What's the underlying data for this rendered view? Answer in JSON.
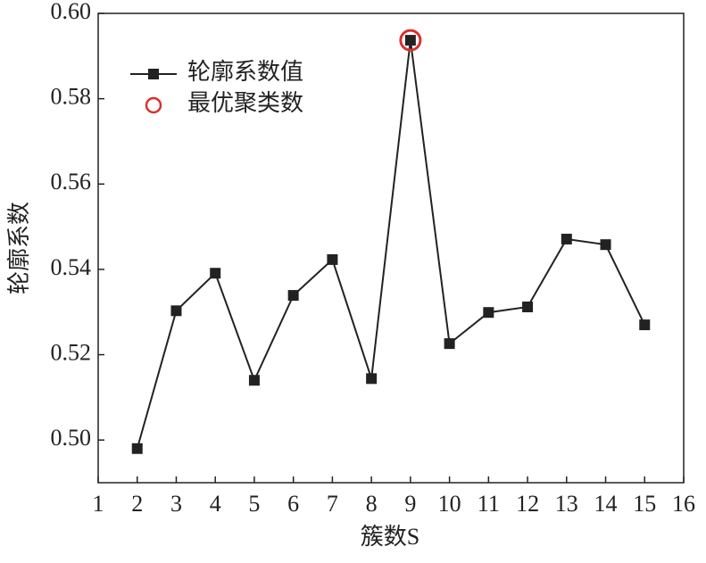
{
  "chart_data": {
    "type": "line",
    "xlabel": "簇数S",
    "ylabel": "轮廓系数",
    "xlim": [
      1,
      16
    ],
    "xticks": [
      1,
      2,
      3,
      4,
      5,
      6,
      7,
      8,
      9,
      10,
      11,
      12,
      13,
      14,
      15,
      16
    ],
    "ylim": [
      0.49,
      0.6
    ],
    "yticks": [
      {
        "value": 0.5,
        "label": "0.50"
      },
      0.52,
      0.54,
      0.56,
      0.58,
      {
        "value": 0.6,
        "label": "0.60"
      }
    ],
    "legend": "upper left",
    "series": [
      {
        "name": "轮廓系数值",
        "color": "#222222",
        "marker": "square",
        "x": [
          2,
          3,
          4,
          5,
          6,
          7,
          8,
          9,
          10,
          11,
          12,
          13,
          14,
          15
        ],
        "values": [
          0.498,
          0.5303,
          0.5391,
          0.514,
          0.5339,
          0.5423,
          0.5144,
          0.5937,
          0.5226,
          0.5299,
          0.5312,
          0.5471,
          0.5458,
          0.527
        ]
      },
      {
        "name": "最优聚类数",
        "color": "#d9302c",
        "marker": "circle",
        "x": [
          9
        ],
        "values": [
          0.5937
        ]
      }
    ]
  }
}
